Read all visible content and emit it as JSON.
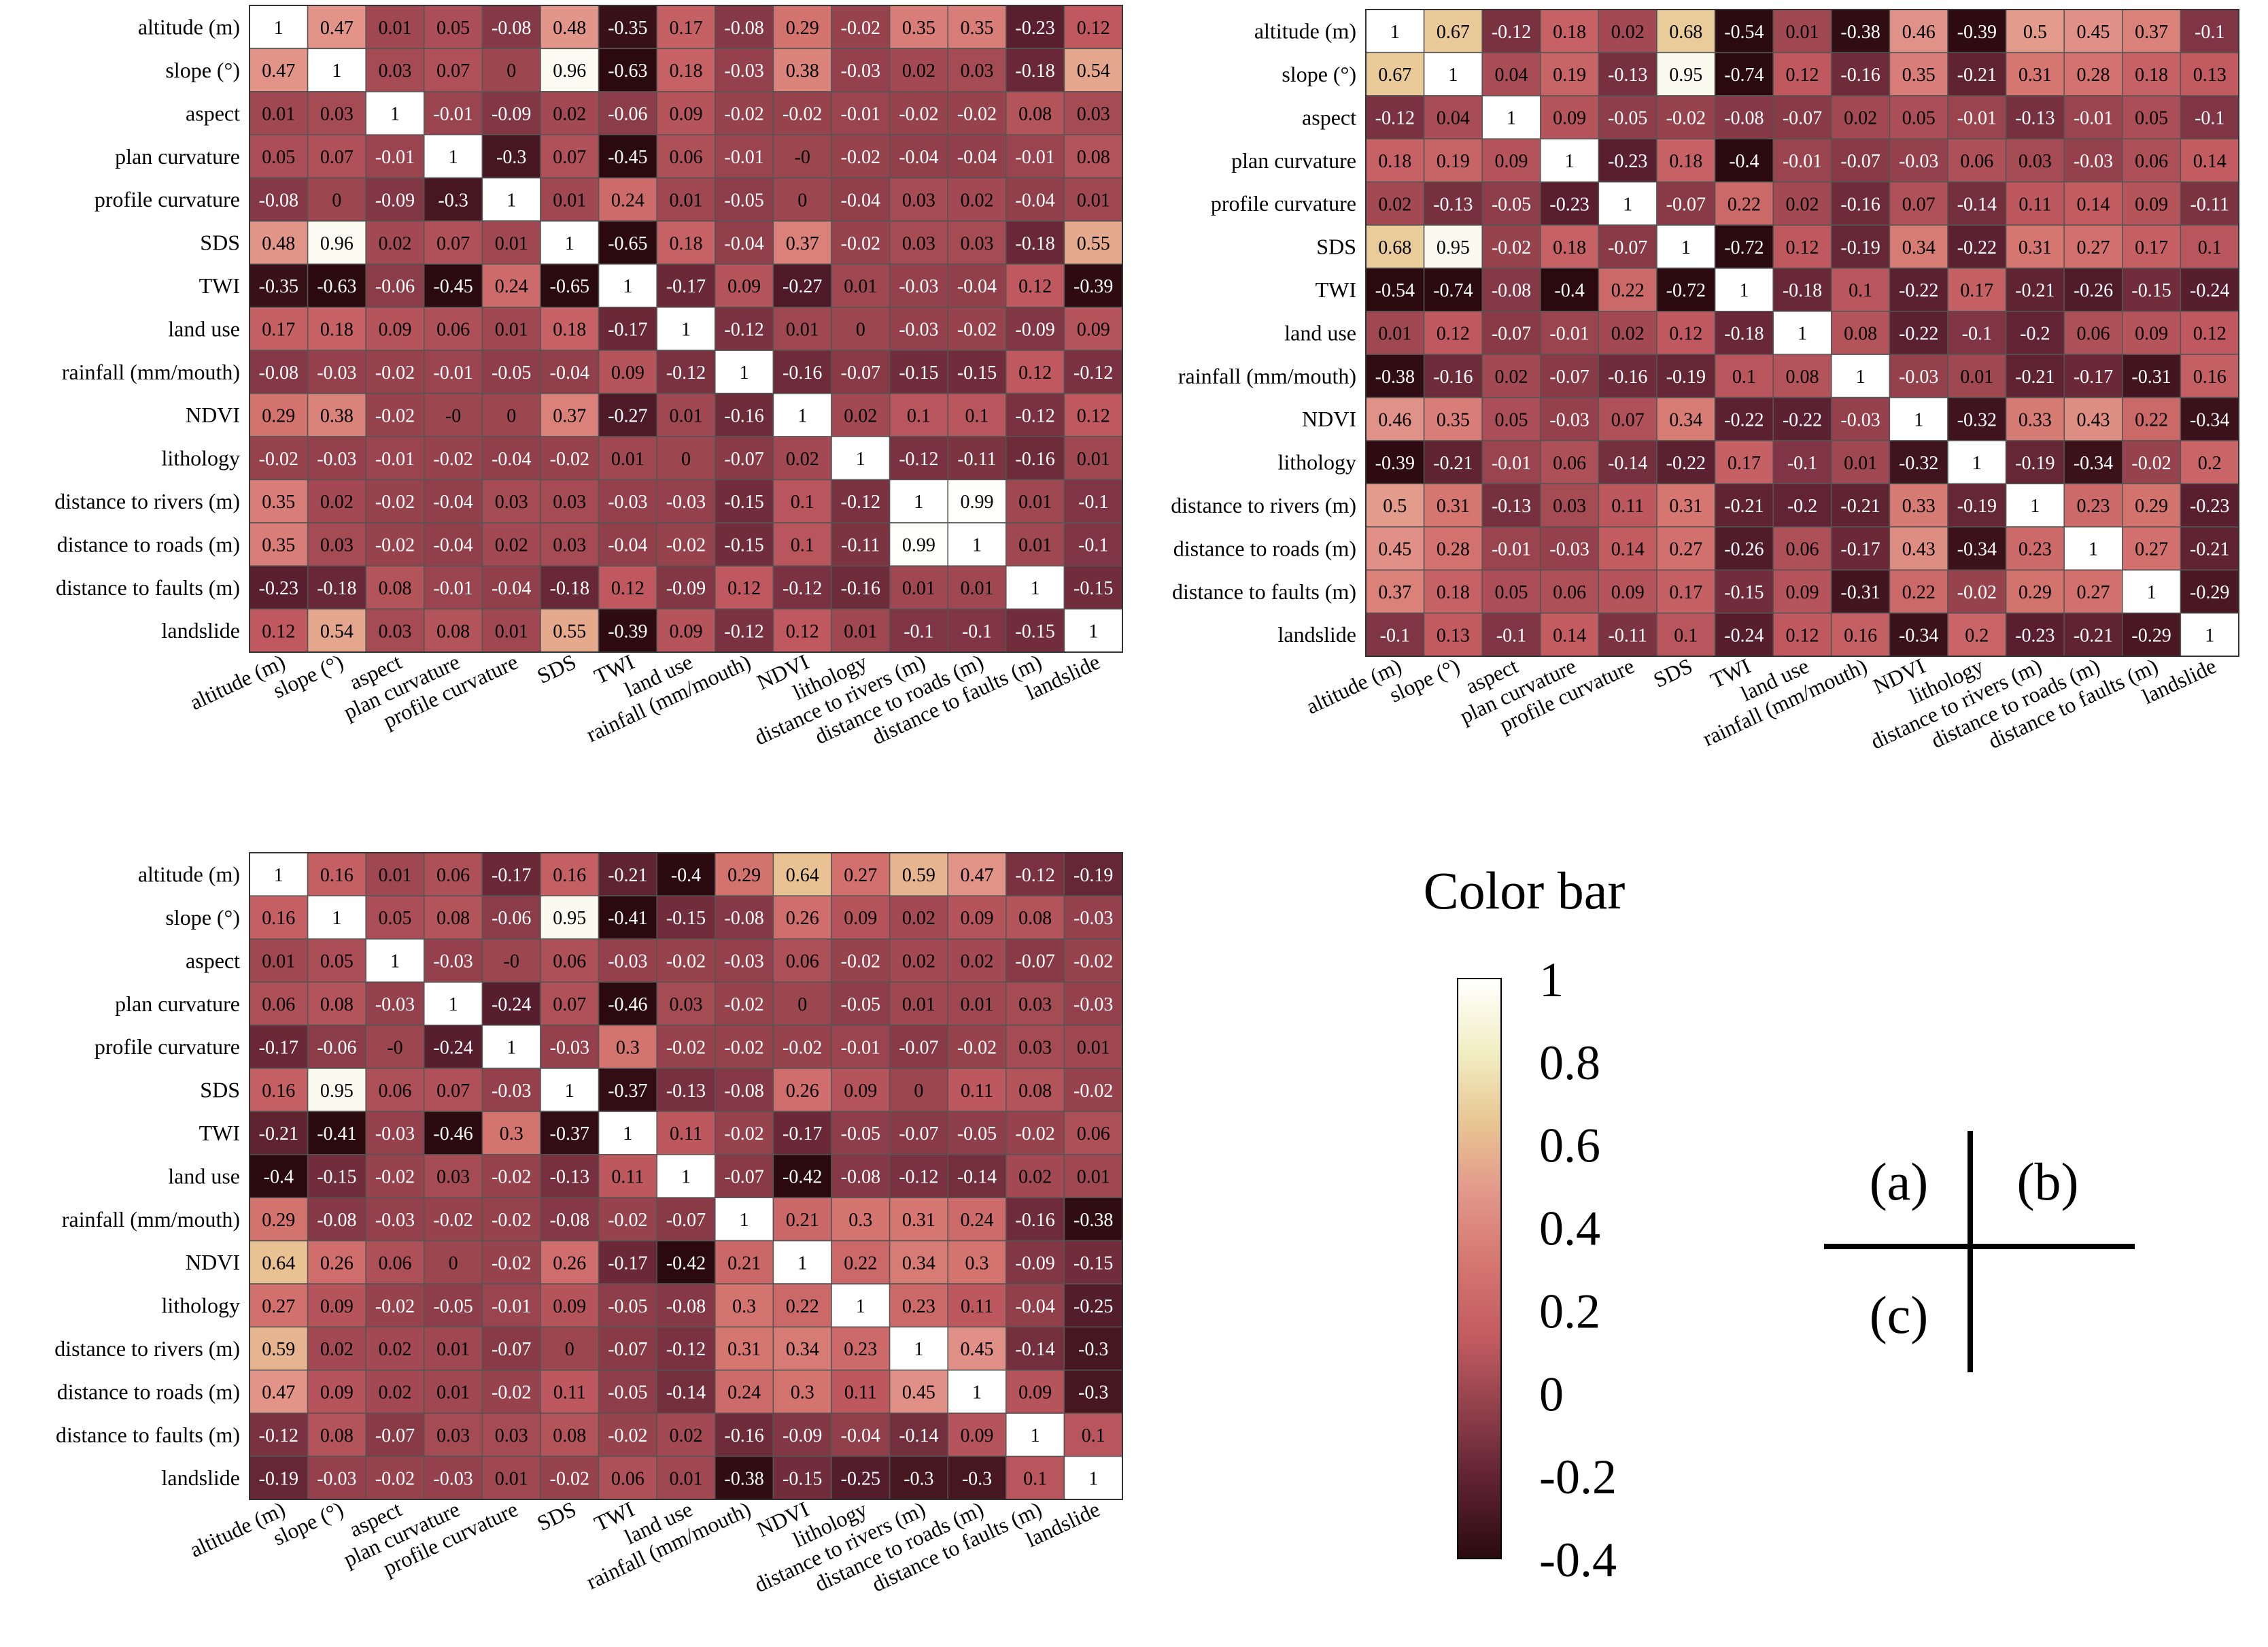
{
  "variables": [
    "altitude (m)",
    "slope (°)",
    "aspect",
    "plan curvature",
    "profile curvature",
    "SDS",
    "TWI",
    "land use",
    "rainfall (mm/mouth)",
    "NDVI",
    "lithology",
    "distance to rivers (m)",
    "distance to roads (m)",
    "distance to faults (m)",
    "landslide"
  ],
  "colors": {
    "scale": [
      "#2a0a0e",
      "#5b2030",
      "#8e3e4a",
      "#c05a60",
      "#d4746f",
      "#e2958a",
      "#e8c592",
      "#f2efc4",
      "#ffffff"
    ],
    "grid": "#555555",
    "text_light": "#ffffff",
    "text_dark": "#000000"
  },
  "chart_data": [
    {
      "type": "heatmap",
      "name": "a",
      "rows": [
        "altitude (m)",
        "slope (°)",
        "aspect",
        "plan curvature",
        "profile curvature",
        "SDS",
        "TWI",
        "land use",
        "rainfall (mm/mouth)",
        "NDVI",
        "lithology",
        "distance to rivers (m)",
        "distance to roads (m)",
        "distance to faults (m)",
        "landslide"
      ],
      "columns": [
        "altitude (m)",
        "slope (°)",
        "aspect",
        "plan curvature",
        "profile curvature",
        "SDS",
        "TWI",
        "land use",
        "rainfall (mm/mouth)",
        "NDVI",
        "lithology",
        "distance to rivers (m)",
        "distance to roads (m)",
        "distance to faults (m)",
        "landslide"
      ],
      "vmin": -0.4,
      "vmax": 1,
      "labels": [
        [
          "1",
          "0.47",
          "0.01",
          "0.05",
          "-0.08",
          "0.48",
          "-0.35",
          "0.17",
          "-0.08",
          "0.29",
          "-0.02",
          "0.35",
          "0.35",
          "-0.23",
          "0.12"
        ],
        [
          "0.47",
          "1",
          "0.03",
          "0.07",
          "0",
          "0.96",
          "-0.63",
          "0.18",
          "-0.03",
          "0.38",
          "-0.03",
          "0.02",
          "0.03",
          "-0.18",
          "0.54"
        ],
        [
          "0.01",
          "0.03",
          "1",
          "-0.01",
          "-0.09",
          "0.02",
          "-0.06",
          "0.09",
          "-0.02",
          "-0.02",
          "-0.01",
          "-0.02",
          "-0.02",
          "0.08",
          "0.03"
        ],
        [
          "0.05",
          "0.07",
          "-0.01",
          "1",
          "-0.3",
          "0.07",
          "-0.45",
          "0.06",
          "-0.01",
          "-0",
          "-0.02",
          "-0.04",
          "-0.04",
          "-0.01",
          "0.08"
        ],
        [
          "-0.08",
          "0",
          "-0.09",
          "-0.3",
          "1",
          "0.01",
          "0.24",
          "0.01",
          "-0.05",
          "0",
          "-0.04",
          "0.03",
          "0.02",
          "-0.04",
          "0.01"
        ],
        [
          "0.48",
          "0.96",
          "0.02",
          "0.07",
          "0.01",
          "1",
          "-0.65",
          "0.18",
          "-0.04",
          "0.37",
          "-0.02",
          "0.03",
          "0.03",
          "-0.18",
          "0.55"
        ],
        [
          "-0.35",
          "-0.63",
          "-0.06",
          "-0.45",
          "0.24",
          "-0.65",
          "1",
          "-0.17",
          "0.09",
          "-0.27",
          "0.01",
          "-0.03",
          "-0.04",
          "0.12",
          "-0.39"
        ],
        [
          "0.17",
          "0.18",
          "0.09",
          "0.06",
          "0.01",
          "0.18",
          "-0.17",
          "1",
          "-0.12",
          "0.01",
          "0",
          "-0.03",
          "-0.02",
          "-0.09",
          "0.09"
        ],
        [
          "-0.08",
          "-0.03",
          "-0.02",
          "-0.01",
          "-0.05",
          "-0.04",
          "0.09",
          "-0.12",
          "1",
          "-0.16",
          "-0.07",
          "-0.15",
          "-0.15",
          "0.12",
          "-0.12"
        ],
        [
          "0.29",
          "0.38",
          "-0.02",
          "-0",
          "0",
          "0.37",
          "-0.27",
          "0.01",
          "-0.16",
          "1",
          "0.02",
          "0.1",
          "0.1",
          "-0.12",
          "0.12"
        ],
        [
          "-0.02",
          "-0.03",
          "-0.01",
          "-0.02",
          "-0.04",
          "-0.02",
          "0.01",
          "0",
          "-0.07",
          "0.02",
          "1",
          "-0.12",
          "-0.11",
          "-0.16",
          "0.01"
        ],
        [
          "0.35",
          "0.02",
          "-0.02",
          "-0.04",
          "0.03",
          "0.03",
          "-0.03",
          "-0.03",
          "-0.15",
          "0.1",
          "-0.12",
          "1",
          "0.99",
          "0.01",
          "-0.1"
        ],
        [
          "0.35",
          "0.03",
          "-0.02",
          "-0.04",
          "0.02",
          "0.03",
          "-0.04",
          "-0.02",
          "-0.15",
          "0.1",
          "-0.11",
          "0.99",
          "1",
          "0.01",
          "-0.1"
        ],
        [
          "-0.23",
          "-0.18",
          "0.08",
          "-0.01",
          "-0.04",
          "-0.18",
          "0.12",
          "-0.09",
          "0.12",
          "-0.12",
          "-0.16",
          "0.01",
          "0.01",
          "1",
          "-0.15"
        ],
        [
          "0.12",
          "0.54",
          "0.03",
          "0.08",
          "0.01",
          "0.55",
          "-0.39",
          "0.09",
          "-0.12",
          "0.12",
          "0.01",
          "-0.1",
          "-0.1",
          "-0.15",
          "1"
        ]
      ]
    },
    {
      "type": "heatmap",
      "name": "b",
      "rows": [
        "altitude (m)",
        "slope (°)",
        "aspect",
        "plan curvature",
        "profile curvature",
        "SDS",
        "TWI",
        "land use",
        "rainfall (mm/mouth)",
        "NDVI",
        "lithology",
        "distance to rivers (m)",
        "distance to roads (m)",
        "distance to faults (m)",
        "landslide"
      ],
      "columns": [
        "altitude (m)",
        "slope (°)",
        "aspect",
        "plan curvature",
        "profile curvature",
        "SDS",
        "TWI",
        "land use",
        "rainfall (mm/mouth)",
        "NDVI",
        "lithology",
        "distance to rivers (m)",
        "distance to roads (m)",
        "distance to faults (m)",
        "landslide"
      ],
      "vmin": -0.4,
      "vmax": 1,
      "labels": [
        [
          "1",
          "0.67",
          "-0.12",
          "0.18",
          "0.02",
          "0.68",
          "-0.54",
          "0.01",
          "-0.38",
          "0.46",
          "-0.39",
          "0.5",
          "0.45",
          "0.37",
          "-0.1"
        ],
        [
          "0.67",
          "1",
          "0.04",
          "0.19",
          "-0.13",
          "0.95",
          "-0.74",
          "0.12",
          "-0.16",
          "0.35",
          "-0.21",
          "0.31",
          "0.28",
          "0.18",
          "0.13"
        ],
        [
          "-0.12",
          "0.04",
          "1",
          "0.09",
          "-0.05",
          "-0.02",
          "-0.08",
          "-0.07",
          "0.02",
          "0.05",
          "-0.01",
          "-0.13",
          "-0.01",
          "0.05",
          "-0.1"
        ],
        [
          "0.18",
          "0.19",
          "0.09",
          "1",
          "-0.23",
          "0.18",
          "-0.4",
          "-0.01",
          "-0.07",
          "-0.03",
          "0.06",
          "0.03",
          "-0.03",
          "0.06",
          "0.14"
        ],
        [
          "0.02",
          "-0.13",
          "-0.05",
          "-0.23",
          "1",
          "-0.07",
          "0.22",
          "0.02",
          "-0.16",
          "0.07",
          "-0.14",
          "0.11",
          "0.14",
          "0.09",
          "-0.11"
        ],
        [
          "0.68",
          "0.95",
          "-0.02",
          "0.18",
          "-0.07",
          "1",
          "-0.72",
          "0.12",
          "-0.19",
          "0.34",
          "-0.22",
          "0.31",
          "0.27",
          "0.17",
          "0.1"
        ],
        [
          "-0.54",
          "-0.74",
          "-0.08",
          "-0.4",
          "0.22",
          "-0.72",
          "1",
          "-0.18",
          "0.1",
          "-0.22",
          "0.17",
          "-0.21",
          "-0.26",
          "-0.15",
          "-0.24"
        ],
        [
          "0.01",
          "0.12",
          "-0.07",
          "-0.01",
          "0.02",
          "0.12",
          "-0.18",
          "1",
          "0.08",
          "-0.22",
          "-0.1",
          "-0.2",
          "0.06",
          "0.09",
          "0.12"
        ],
        [
          "-0.38",
          "-0.16",
          "0.02",
          "-0.07",
          "-0.16",
          "-0.19",
          "0.1",
          "0.08",
          "1",
          "-0.03",
          "0.01",
          "-0.21",
          "-0.17",
          "-0.31",
          "0.16"
        ],
        [
          "0.46",
          "0.35",
          "0.05",
          "-0.03",
          "0.07",
          "0.34",
          "-0.22",
          "-0.22",
          "-0.03",
          "1",
          "-0.32",
          "0.33",
          "0.43",
          "0.22",
          "-0.34"
        ],
        [
          "-0.39",
          "-0.21",
          "-0.01",
          "0.06",
          "-0.14",
          "-0.22",
          "0.17",
          "-0.1",
          "0.01",
          "-0.32",
          "1",
          "-0.19",
          "-0.34",
          "-0.02",
          "0.2"
        ],
        [
          "0.5",
          "0.31",
          "-0.13",
          "0.03",
          "0.11",
          "0.31",
          "-0.21",
          "-0.2",
          "-0.21",
          "0.33",
          "-0.19",
          "1",
          "0.23",
          "0.29",
          "-0.23"
        ],
        [
          "0.45",
          "0.28",
          "-0.01",
          "-0.03",
          "0.14",
          "0.27",
          "-0.26",
          "0.06",
          "-0.17",
          "0.43",
          "-0.34",
          "0.23",
          "1",
          "0.27",
          "-0.21"
        ],
        [
          "0.37",
          "0.18",
          "0.05",
          "0.06",
          "0.09",
          "0.17",
          "-0.15",
          "0.09",
          "-0.31",
          "0.22",
          "-0.02",
          "0.29",
          "0.27",
          "1",
          "-0.29"
        ],
        [
          "-0.1",
          "0.13",
          "-0.1",
          "0.14",
          "-0.11",
          "0.1",
          "-0.24",
          "0.12",
          "0.16",
          "-0.34",
          "0.2",
          "-0.23",
          "-0.21",
          "-0.29",
          "1"
        ]
      ]
    },
    {
      "type": "heatmap",
      "name": "c",
      "rows": [
        "altitude (m)",
        "slope (°)",
        "aspect",
        "plan curvature",
        "profile curvature",
        "SDS",
        "TWI",
        "land use",
        "rainfall (mm/mouth)",
        "NDVI",
        "lithology",
        "distance to rivers (m)",
        "distance to roads (m)",
        "distance to faults (m)",
        "landslide"
      ],
      "columns": [
        "altitude (m)",
        "slope (°)",
        "aspect",
        "plan curvature",
        "profile curvature",
        "SDS",
        "TWI",
        "land use",
        "rainfall (mm/mouth)",
        "NDVI",
        "lithology",
        "distance to rivers (m)",
        "distance to roads (m)",
        "distance to faults (m)",
        "landslide"
      ],
      "vmin": -0.4,
      "vmax": 1,
      "labels": [
        [
          "1",
          "0.16",
          "0.01",
          "0.06",
          "-0.17",
          "0.16",
          "-0.21",
          "-0.4",
          "0.29",
          "0.64",
          "0.27",
          "0.59",
          "0.47",
          "-0.12",
          "-0.19"
        ],
        [
          "0.16",
          "1",
          "0.05",
          "0.08",
          "-0.06",
          "0.95",
          "-0.41",
          "-0.15",
          "-0.08",
          "0.26",
          "0.09",
          "0.02",
          "0.09",
          "0.08",
          "-0.03"
        ],
        [
          "0.01",
          "0.05",
          "1",
          "-0.03",
          "-0",
          "0.06",
          "-0.03",
          "-0.02",
          "-0.03",
          "0.06",
          "-0.02",
          "0.02",
          "0.02",
          "-0.07",
          "-0.02"
        ],
        [
          "0.06",
          "0.08",
          "-0.03",
          "1",
          "-0.24",
          "0.07",
          "-0.46",
          "0.03",
          "-0.02",
          "0",
          "-0.05",
          "0.01",
          "0.01",
          "0.03",
          "-0.03"
        ],
        [
          "-0.17",
          "-0.06",
          "-0",
          "-0.24",
          "1",
          "-0.03",
          "0.3",
          "-0.02",
          "-0.02",
          "-0.02",
          "-0.01",
          "-0.07",
          "-0.02",
          "0.03",
          "0.01"
        ],
        [
          "0.16",
          "0.95",
          "0.06",
          "0.07",
          "-0.03",
          "1",
          "-0.37",
          "-0.13",
          "-0.08",
          "0.26",
          "0.09",
          "0",
          "0.11",
          "0.08",
          "-0.02"
        ],
        [
          "-0.21",
          "-0.41",
          "-0.03",
          "-0.46",
          "0.3",
          "-0.37",
          "1",
          "0.11",
          "-0.02",
          "-0.17",
          "-0.05",
          "-0.07",
          "-0.05",
          "-0.02",
          "0.06"
        ],
        [
          "-0.4",
          "-0.15",
          "-0.02",
          "0.03",
          "-0.02",
          "-0.13",
          "0.11",
          "1",
          "-0.07",
          "-0.42",
          "-0.08",
          "-0.12",
          "-0.14",
          "0.02",
          "0.01"
        ],
        [
          "0.29",
          "-0.08",
          "-0.03",
          "-0.02",
          "-0.02",
          "-0.08",
          "-0.02",
          "-0.07",
          "1",
          "0.21",
          "0.3",
          "0.31",
          "0.24",
          "-0.16",
          "-0.38"
        ],
        [
          "0.64",
          "0.26",
          "0.06",
          "0",
          "-0.02",
          "0.26",
          "-0.17",
          "-0.42",
          "0.21",
          "1",
          "0.22",
          "0.34",
          "0.3",
          "-0.09",
          "-0.15"
        ],
        [
          "0.27",
          "0.09",
          "-0.02",
          "-0.05",
          "-0.01",
          "0.09",
          "-0.05",
          "-0.08",
          "0.3",
          "0.22",
          "1",
          "0.23",
          "0.11",
          "-0.04",
          "-0.25"
        ],
        [
          "0.59",
          "0.02",
          "0.02",
          "0.01",
          "-0.07",
          "0",
          "-0.07",
          "-0.12",
          "0.31",
          "0.34",
          "0.23",
          "1",
          "0.45",
          "-0.14",
          "-0.3"
        ],
        [
          "0.47",
          "0.09",
          "0.02",
          "0.01",
          "-0.02",
          "0.11",
          "-0.05",
          "-0.14",
          "0.24",
          "0.3",
          "0.11",
          "0.45",
          "1",
          "0.09",
          "-0.3"
        ],
        [
          "-0.12",
          "0.08",
          "-0.07",
          "0.03",
          "0.03",
          "0.08",
          "-0.02",
          "0.02",
          "-0.16",
          "-0.09",
          "-0.04",
          "-0.14",
          "0.09",
          "1",
          "0.1"
        ],
        [
          "-0.19",
          "-0.03",
          "-0.02",
          "-0.03",
          "0.01",
          "-0.02",
          "0.06",
          "0.01",
          "-0.38",
          "-0.15",
          "-0.25",
          "-0.3",
          "-0.3",
          "0.1",
          "1"
        ]
      ]
    }
  ],
  "colorbar": {
    "title": "Color bar",
    "ticks": [
      {
        "value": 1,
        "label": "1"
      },
      {
        "value": 0.8,
        "label": "0.8"
      },
      {
        "value": 0.6,
        "label": "0.6"
      },
      {
        "value": 0.4,
        "label": "0.4"
      },
      {
        "value": 0.2,
        "label": "0.2"
      },
      {
        "value": 0,
        "label": "0"
      },
      {
        "value": -0.2,
        "label": "-0.2"
      },
      {
        "value": -0.4,
        "label": "-0.4"
      }
    ]
  },
  "key": {
    "a": "(a)",
    "b": "(b)",
    "c": "(c)"
  }
}
